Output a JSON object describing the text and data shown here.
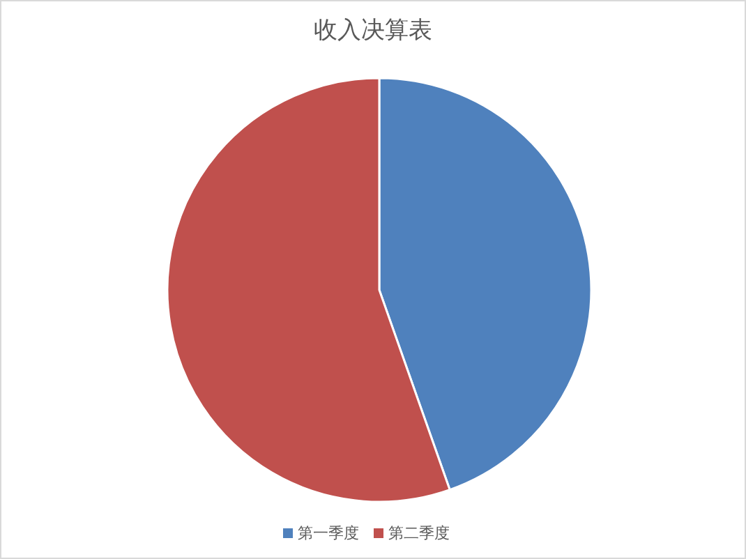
{
  "chart_data": {
    "type": "pie",
    "title": "收入决算表",
    "categories": [
      "第一季度",
      "第二季度"
    ],
    "values": [
      44.6,
      55.4
    ],
    "colors": [
      "#4f81bd",
      "#c0504d"
    ],
    "legend": "bottom"
  }
}
